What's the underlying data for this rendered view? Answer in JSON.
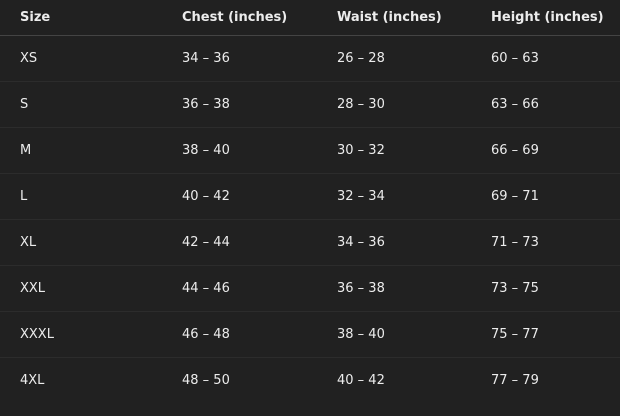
{
  "headers": [
    "Size",
    "Chest (inches)",
    "Waist (inches)",
    "Height (inches)"
  ],
  "rows": [
    [
      "XS",
      "34 – 36",
      "26 – 28",
      "60 – 63"
    ],
    [
      "S",
      "36 – 38",
      "28 – 30",
      "63 – 66"
    ],
    [
      "M",
      "38 – 40",
      "30 – 32",
      "66 – 69"
    ],
    [
      "L",
      "40 – 42",
      "32 – 34",
      "69 – 71"
    ],
    [
      "XL",
      "42 – 44",
      "34 – 36",
      "71 – 73"
    ],
    [
      "XXL",
      "44 – 46",
      "36 – 38",
      "73 – 75"
    ],
    [
      "XXXL",
      "46 – 48",
      "38 – 40",
      "75 – 77"
    ],
    [
      "4XL",
      "48 – 50",
      "40 – 42",
      "77 – 79"
    ]
  ]
}
